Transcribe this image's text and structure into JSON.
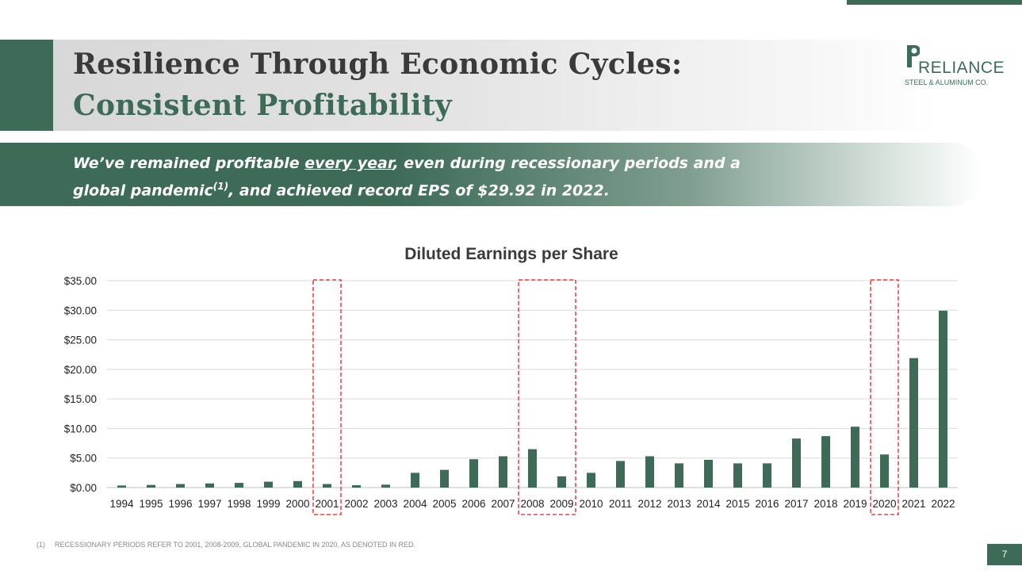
{
  "header": {
    "title_line1": "Resilience Through Economic Cycles:",
    "title_line2": "Consistent Profitability"
  },
  "logo": {
    "word": "RELIANCE",
    "sub": "STEEL & ALUMINUM CO."
  },
  "callout": {
    "part1": "We’ve remained profitable ",
    "underlined": "every year",
    "part2": ", even during recessionary periods and a global pandemic",
    "superscript": "(1)",
    "part3": ", and achieved record EPS of $29.92 in 2022."
  },
  "colors": {
    "brand_green": "#3d6b58",
    "highlight_red": "#e02020",
    "gridline": "#d9d9d9"
  },
  "chart_data": {
    "type": "bar",
    "title": "Diluted Earnings per Share",
    "xlabel": "",
    "ylabel": "",
    "ylim": [
      0,
      35
    ],
    "yticks": [
      "$0.00",
      "$5.00",
      "$10.00",
      "$15.00",
      "$20.00",
      "$25.00",
      "$30.00",
      "$35.00"
    ],
    "grid": true,
    "categories": [
      "1994",
      "1995",
      "1996",
      "1997",
      "1998",
      "1999",
      "2000",
      "2001",
      "2002",
      "2003",
      "2004",
      "2005",
      "2006",
      "2007",
      "2008",
      "2009",
      "2010",
      "2011",
      "2012",
      "2013",
      "2014",
      "2015",
      "2016",
      "2017",
      "2018",
      "2019",
      "2020",
      "2021",
      "2022"
    ],
    "values": [
      0.35,
      0.45,
      0.6,
      0.7,
      0.8,
      1.0,
      1.1,
      0.6,
      0.4,
      0.5,
      2.5,
      3.0,
      4.8,
      5.3,
      6.5,
      1.9,
      2.5,
      4.5,
      5.3,
      4.1,
      4.7,
      4.1,
      4.1,
      8.3,
      8.7,
      10.3,
      5.6,
      21.9,
      29.92
    ],
    "highlighted_periods": [
      [
        "2001"
      ],
      [
        "2008",
        "2009"
      ],
      [
        "2020"
      ]
    ]
  },
  "footnote": {
    "number": "(1)",
    "text": "RECESSIONARY PERIODS REFER TO 2001, 2008-2009, GLOBAL PANDEMIC IN 2020, AS DENOTED IN RED."
  },
  "page": {
    "number": "7"
  }
}
